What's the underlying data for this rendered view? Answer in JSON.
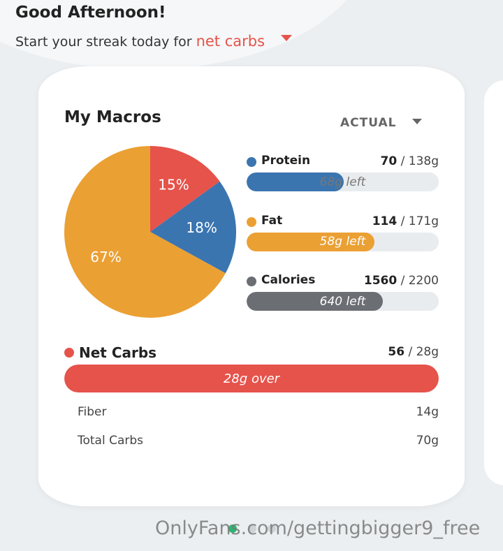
{
  "header": {
    "title": "Good Afternoon!",
    "subtitle": "Start your streak today for",
    "streak_target": "net carbs"
  },
  "card": {
    "title": "My Macros",
    "view": "ACTUAL",
    "chart_data": {
      "type": "pie",
      "values": [
        15,
        18,
        67
      ],
      "value_labels": [
        "15%",
        "18%",
        "67%"
      ],
      "colors": [
        "#e5534b",
        "#3a75b0",
        "#eba033"
      ]
    },
    "macros": [
      {
        "name": "Protein",
        "color": "#3a75b0",
        "value": 70,
        "goal": 138,
        "goal_label": "/ 138g",
        "status": "68g left"
      },
      {
        "name": "Fat",
        "color": "#eba033",
        "value": 114,
        "goal": 171,
        "goal_label": "/ 171g",
        "status": "58g left"
      },
      {
        "name": "Calories",
        "color": "#6b6e73",
        "value": 1560,
        "goal": 2200,
        "goal_label": "/ 2200",
        "status": "640 left"
      }
    ],
    "net_carbs": {
      "name": "Net Carbs",
      "color": "#e5534b",
      "value": 56,
      "goal": 28,
      "goal_label": "/ 28g",
      "status": "28g over"
    },
    "details": [
      [
        "Fiber",
        "14g"
      ],
      [
        "Total Carbs",
        "70g"
      ]
    ]
  },
  "watermark": "OnlyFans.com/gettingbigger9_free"
}
